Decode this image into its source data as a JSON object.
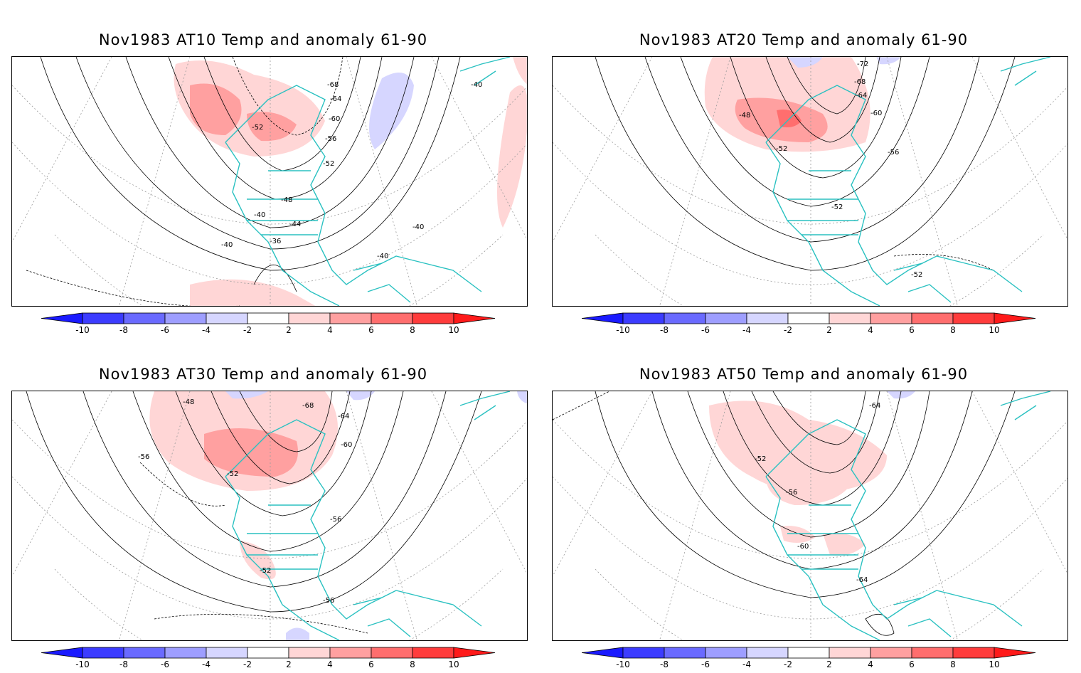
{
  "panels": [
    {
      "title": "Nov1983 AT10 Temp and anomaly 61-90",
      "contour_labels": [
        "-68",
        "-64",
        "-60",
        "-56",
        "-52",
        "-52",
        "-48",
        "-44",
        "-40",
        "-40",
        "-40",
        "-40",
        "-36",
        "-40"
      ]
    },
    {
      "title": "Nov1983 AT20 Temp and anomaly 61-90",
      "contour_labels": [
        "-72",
        "-68",
        "-64",
        "-60",
        "-56",
        "-48",
        "-52",
        "-52",
        "-52"
      ]
    },
    {
      "title": "Nov1983 AT30 Temp and anomaly 61-90",
      "contour_labels": [
        "-48",
        "-68",
        "-64",
        "-60",
        "-56",
        "-52",
        "-56",
        "-52",
        "-56"
      ]
    },
    {
      "title": "Nov1983 AT50 Temp and anomaly 61-90",
      "contour_labels": [
        "-64",
        "-52",
        "-56",
        "-60",
        "-64"
      ]
    }
  ],
  "colorbar": {
    "tick_labels": [
      "-10",
      "-8",
      "-6",
      "-4",
      "-2",
      "2",
      "4",
      "6",
      "8",
      "10"
    ],
    "colors": [
      "#1a1aff",
      "#3c3cff",
      "#6a6aff",
      "#9e9eff",
      "#d6d6ff",
      "#ffffff",
      "#ffd6d6",
      "#ffa0a0",
      "#ff6e6e",
      "#ff3c3c",
      "#ff1a1a"
    ]
  },
  "map_style": {
    "coast_color": "#2ac1c1",
    "contour_color": "#000000",
    "grid_color": "#9a9a9a"
  }
}
